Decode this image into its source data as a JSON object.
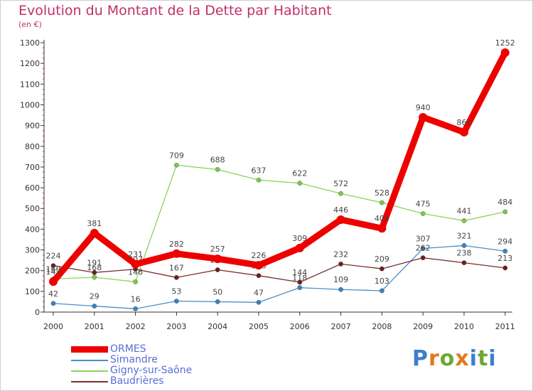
{
  "title": "Evolution du Montant de la Dette par Habitant",
  "unit": "(en €)",
  "logo": "Proxiti",
  "chart_data": {
    "type": "line",
    "title": "Evolution du Montant de la Dette par Habitant",
    "ylabel": "(en €)",
    "xlabel": "",
    "ylim": [
      0,
      1300
    ],
    "yticks": [
      0,
      100,
      200,
      300,
      400,
      500,
      600,
      700,
      800,
      900,
      1000,
      1100,
      1200,
      1300
    ],
    "categories": [
      "2000",
      "2001",
      "2002",
      "2003",
      "2004",
      "2005",
      "2006",
      "2007",
      "2008",
      "2009",
      "2010",
      "2011"
    ],
    "grid": false,
    "legend_position": "bottom-left",
    "series": [
      {
        "name": "Simandre",
        "color": "#4a8fc8",
        "point_color": "#3a82c0",
        "values": [
          42,
          29,
          16,
          53,
          50,
          47,
          118,
          109,
          103,
          307,
          321,
          294
        ],
        "labels": [
          "42",
          "29",
          "16",
          "53",
          "50",
          "47",
          "118",
          "109",
          "103",
          "307",
          "321",
          "294"
        ]
      },
      {
        "name": "Baudrières",
        "color": "#7a2d2d",
        "point_color": "#6a1f1f",
        "values": [
          224,
          191,
          207,
          167,
          204,
          176,
          144,
          232,
          209,
          262,
          238,
          213
        ],
        "labels": [
          "224",
          "191",
          "207",
          "167",
          "204",
          "176",
          "144",
          "232",
          "209",
          "262",
          "238",
          "213"
        ]
      },
      {
        "name": "Gigny-sur-Saône",
        "color": "#8ad35a",
        "point_color": "#7cc84a",
        "values": [
          160,
          168,
          146,
          709,
          688,
          637,
          622,
          572,
          528,
          475,
          441,
          484
        ],
        "labels": [
          "160",
          "168",
          "146",
          "709",
          "688",
          "637",
          "622",
          "572",
          "528",
          "475",
          "441",
          "484"
        ]
      },
      {
        "name": "ORMES",
        "color": "#ee0000",
        "point_color": "#ee0000",
        "values": [
          147,
          381,
          231,
          282,
          257,
          226,
          309,
          446,
          404,
          940,
          868,
          1252
        ],
        "labels": [
          "147",
          "381",
          "231",
          "282",
          "257",
          "226",
          "309",
          "446",
          "404",
          "940",
          "868",
          "1252"
        ]
      }
    ]
  },
  "legend": [
    {
      "label": "ORMES",
      "color": "#ee0000",
      "thick": true
    },
    {
      "label": "Simandre",
      "color": "#4a8fc8",
      "thick": false
    },
    {
      "label": "Gigny-sur-Saône",
      "color": "#8ad35a",
      "thick": false
    },
    {
      "label": "Baudrières",
      "color": "#7a2d2d",
      "thick": false
    }
  ],
  "colors": {
    "title": "#c0306a",
    "axis": "#333333",
    "minor_tick": "#d02020",
    "legend_text": "#5a6ed6"
  }
}
